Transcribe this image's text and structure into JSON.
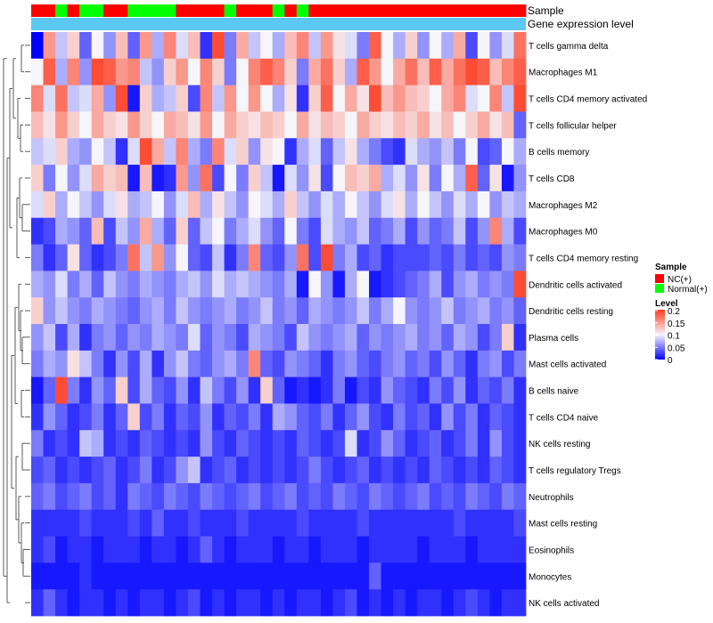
{
  "chart_data": {
    "type": "heatmap",
    "title": "",
    "annotation_tracks": [
      {
        "name": "Sample",
        "label": "Sample"
      },
      {
        "name": "Gene expression level",
        "label": "Gene expression level"
      }
    ],
    "rows": [
      "T cells gamma delta",
      "Macrophages M1",
      "T cells CD4 memory activated",
      "T cells follicular helper",
      "B cells memory",
      "T cells CD8",
      "Macrophages M2",
      "Macrophages M0",
      "T cells CD4 memory resting",
      "Dendritic cells activated",
      "Dendritic cells resting",
      "Plasma cells",
      "Mast cells activated",
      "B cells naive",
      "T cells CD4 naive",
      "NK cells resting",
      "T cells regulatory  Tregs",
      "Neutrophils",
      "Mast cells resting",
      "Eosinophils",
      "Monocytes",
      "NK cells activated"
    ],
    "columns": 41,
    "sample_groups": [
      "NC",
      "NC",
      "Normal",
      "NC",
      "Normal",
      "Normal",
      "NC",
      "NC",
      "Normal",
      "Normal",
      "Normal",
      "Normal",
      "NC",
      "NC",
      "NC",
      "NC",
      "Normal",
      "NC",
      "NC",
      "NC",
      "Normal",
      "NC",
      "Normal",
      "NC",
      "NC",
      "NC",
      "NC",
      "NC",
      "NC",
      "NC",
      "NC",
      "NC",
      "NC",
      "NC",
      "NC",
      "NC",
      "NC",
      "NC",
      "NC",
      "NC",
      "NC"
    ],
    "legend": {
      "sample_title": "Sample",
      "sample_items": [
        {
          "label": "NC(+)",
          "color": "#ff0000"
        },
        {
          "label": "Normal(+)",
          "color": "#00ff00"
        }
      ],
      "level_title": "Level",
      "level_ticks": [
        "0.2",
        "0.15",
        "0.1",
        "0.05",
        "0"
      ],
      "level_tick_values": [
        0.2,
        0.15,
        0.1,
        0.05,
        0
      ],
      "range": [
        0,
        0.2
      ],
      "placement": "right"
    },
    "colors": {
      "low": "#0000ff",
      "mid": "#f5f5fa",
      "high": "#ff3a1e",
      "expression_track": "#5ac8f0",
      "dendrogram": "#333333"
    },
    "values": [
      [
        0.0,
        0.15,
        0.08,
        0.12,
        0.04,
        0.1,
        0.06,
        0.13,
        0.04,
        0.15,
        0.07,
        0.16,
        0.09,
        0.13,
        0.02,
        0.19,
        0.05,
        0.14,
        0.08,
        0.1,
        0.07,
        0.13,
        0.16,
        0.08,
        0.15,
        0.11,
        0.09,
        0.05,
        0.18,
        0.1,
        0.07,
        0.12,
        0.06,
        0.1,
        0.07,
        0.14,
        0.03,
        0.1,
        0.06,
        0.09,
        0.17
      ],
      [
        0.1,
        0.18,
        0.07,
        0.16,
        0.06,
        0.19,
        0.18,
        0.15,
        0.16,
        0.08,
        0.06,
        0.12,
        0.15,
        0.1,
        0.16,
        0.12,
        0.05,
        0.1,
        0.16,
        0.18,
        0.16,
        0.12,
        0.05,
        0.14,
        0.17,
        0.12,
        0.07,
        0.18,
        0.15,
        0.1,
        0.14,
        0.17,
        0.13,
        0.18,
        0.14,
        0.17,
        0.19,
        0.18,
        0.13,
        0.16,
        0.18
      ],
      [
        0.16,
        0.09,
        0.17,
        0.08,
        0.09,
        0.14,
        0.06,
        0.19,
        0.01,
        0.12,
        0.07,
        0.08,
        0.12,
        0.03,
        0.16,
        0.08,
        0.15,
        0.1,
        0.15,
        0.1,
        0.07,
        0.11,
        0.02,
        0.12,
        0.18,
        0.1,
        0.14,
        0.11,
        0.19,
        0.13,
        0.15,
        0.13,
        0.12,
        0.1,
        0.14,
        0.16,
        0.09,
        0.1,
        0.16,
        0.08,
        0.19
      ],
      [
        0.13,
        0.11,
        0.15,
        0.12,
        0.1,
        0.14,
        0.12,
        0.11,
        0.15,
        0.12,
        0.1,
        0.14,
        0.13,
        0.11,
        0.15,
        0.1,
        0.14,
        0.12,
        0.11,
        0.13,
        0.12,
        0.1,
        0.14,
        0.11,
        0.13,
        0.12,
        0.1,
        0.14,
        0.12,
        0.11,
        0.13,
        0.12,
        0.14,
        0.11,
        0.13,
        0.1,
        0.12,
        0.14,
        0.11,
        0.13,
        0.04
      ],
      [
        0.08,
        0.09,
        0.12,
        0.07,
        0.06,
        0.1,
        0.08,
        0.02,
        0.09,
        0.19,
        0.14,
        0.08,
        0.16,
        0.07,
        0.05,
        0.16,
        0.09,
        0.12,
        0.06,
        0.11,
        0.1,
        0.02,
        0.07,
        0.09,
        0.04,
        0.08,
        0.11,
        0.07,
        0.05,
        0.03,
        0.02,
        0.09,
        0.07,
        0.06,
        0.08,
        0.05,
        0.1,
        0.03,
        0.04,
        0.1,
        0.07
      ],
      [
        0.12,
        0.05,
        0.1,
        0.06,
        0.09,
        0.14,
        0.12,
        0.13,
        0.01,
        0.13,
        0.01,
        0.02,
        0.15,
        0.06,
        0.17,
        0.03,
        0.1,
        0.05,
        0.12,
        0.08,
        0.01,
        0.09,
        0.06,
        0.11,
        0.03,
        0.1,
        0.13,
        0.12,
        0.14,
        0.07,
        0.09,
        0.06,
        0.11,
        0.05,
        0.1,
        0.07,
        0.18,
        0.04,
        0.11,
        0.01,
        0.06
      ],
      [
        0.09,
        0.12,
        0.07,
        0.1,
        0.08,
        0.06,
        0.09,
        0.11,
        0.07,
        0.08,
        0.1,
        0.06,
        0.09,
        0.13,
        0.07,
        0.11,
        0.08,
        0.06,
        0.1,
        0.09,
        0.07,
        0.12,
        0.08,
        0.06,
        0.09,
        0.07,
        0.1,
        0.08,
        0.06,
        0.09,
        0.11,
        0.07,
        0.1,
        0.08,
        0.06,
        0.09,
        0.07,
        0.1,
        0.06,
        0.08,
        0.07
      ],
      [
        0.02,
        0.03,
        0.07,
        0.06,
        0.04,
        0.13,
        0.03,
        0.08,
        0.06,
        0.14,
        0.07,
        0.04,
        0.12,
        0.04,
        0.08,
        0.1,
        0.05,
        0.07,
        0.09,
        0.06,
        0.04,
        0.1,
        0.05,
        0.03,
        0.09,
        0.07,
        0.06,
        0.08,
        0.04,
        0.05,
        0.07,
        0.03,
        0.06,
        0.04,
        0.05,
        0.08,
        0.03,
        0.06,
        0.16,
        0.07,
        0.03
      ],
      [
        0.05,
        0.02,
        0.04,
        0.11,
        0.04,
        0.02,
        0.03,
        0.05,
        0.17,
        0.08,
        0.15,
        0.06,
        0.1,
        0.04,
        0.03,
        0.08,
        0.02,
        0.05,
        0.16,
        0.04,
        0.03,
        0.06,
        0.17,
        0.03,
        0.19,
        0.05,
        0.07,
        0.03,
        0.04,
        0.02,
        0.03,
        0.03,
        0.03,
        0.04,
        0.03,
        0.05,
        0.03,
        0.04,
        0.03,
        0.06,
        0.05
      ],
      [
        0.07,
        0.06,
        0.09,
        0.05,
        0.07,
        0.04,
        0.08,
        0.06,
        0.05,
        0.07,
        0.06,
        0.05,
        0.07,
        0.08,
        0.06,
        0.09,
        0.07,
        0.08,
        0.07,
        0.06,
        0.05,
        0.07,
        0.01,
        0.1,
        0.06,
        0.01,
        0.07,
        0.1,
        0.01,
        0.02,
        0.03,
        0.04,
        0.05,
        0.07,
        0.03,
        0.06,
        0.07,
        0.05,
        0.06,
        0.05,
        0.19
      ],
      [
        0.12,
        0.06,
        0.08,
        0.06,
        0.05,
        0.07,
        0.06,
        0.05,
        0.04,
        0.06,
        0.07,
        0.05,
        0.08,
        0.06,
        0.05,
        0.06,
        0.07,
        0.05,
        0.06,
        0.08,
        0.05,
        0.06,
        0.04,
        0.07,
        0.06,
        0.05,
        0.06,
        0.08,
        0.05,
        0.07,
        0.1,
        0.06,
        0.05,
        0.06,
        0.08,
        0.05,
        0.06,
        0.07,
        0.05,
        0.06,
        0.04
      ],
      [
        0.06,
        0.08,
        0.03,
        0.07,
        0.02,
        0.05,
        0.06,
        0.04,
        0.06,
        0.05,
        0.07,
        0.06,
        0.05,
        0.09,
        0.04,
        0.06,
        0.05,
        0.03,
        0.07,
        0.06,
        0.05,
        0.03,
        0.08,
        0.06,
        0.05,
        0.06,
        0.07,
        0.04,
        0.06,
        0.05,
        0.06,
        0.07,
        0.05,
        0.06,
        0.04,
        0.07,
        0.06,
        0.03,
        0.05,
        0.12,
        0.02
      ],
      [
        0.05,
        0.07,
        0.06,
        0.11,
        0.08,
        0.05,
        0.02,
        0.06,
        0.03,
        0.07,
        0.02,
        0.06,
        0.08,
        0.05,
        0.04,
        0.06,
        0.07,
        0.05,
        0.16,
        0.04,
        0.03,
        0.06,
        0.05,
        0.04,
        0.02,
        0.05,
        0.06,
        0.04,
        0.03,
        0.05,
        0.06,
        0.04,
        0.05,
        0.03,
        0.06,
        0.04,
        0.02,
        0.05,
        0.06,
        0.03,
        0.05
      ],
      [
        0.01,
        0.04,
        0.19,
        0.05,
        0.02,
        0.06,
        0.04,
        0.12,
        0.03,
        0.07,
        0.04,
        0.03,
        0.06,
        0.02,
        0.08,
        0.05,
        0.03,
        0.06,
        0.02,
        0.12,
        0.04,
        0.01,
        0.02,
        0.01,
        0.02,
        0.05,
        0.01,
        0.03,
        0.02,
        0.06,
        0.04,
        0.03,
        0.02,
        0.05,
        0.03,
        0.06,
        0.02,
        0.04,
        0.03,
        0.05,
        0.02
      ],
      [
        0.02,
        0.06,
        0.04,
        0.02,
        0.03,
        0.05,
        0.02,
        0.04,
        0.12,
        0.03,
        0.05,
        0.02,
        0.04,
        0.03,
        0.06,
        0.02,
        0.04,
        0.03,
        0.05,
        0.02,
        0.07,
        0.06,
        0.04,
        0.03,
        0.05,
        0.02,
        0.04,
        0.06,
        0.03,
        0.02,
        0.05,
        0.03,
        0.04,
        0.02,
        0.06,
        0.03,
        0.05,
        0.02,
        0.04,
        0.03,
        0.02
      ],
      [
        0.05,
        0.02,
        0.03,
        0.02,
        0.08,
        0.07,
        0.02,
        0.03,
        0.02,
        0.04,
        0.03,
        0.02,
        0.03,
        0.02,
        0.06,
        0.03,
        0.02,
        0.04,
        0.03,
        0.02,
        0.03,
        0.02,
        0.04,
        0.03,
        0.02,
        0.03,
        0.09,
        0.02,
        0.03,
        0.06,
        0.04,
        0.02,
        0.03,
        0.04,
        0.02,
        0.03,
        0.05,
        0.02,
        0.06,
        0.03,
        0.02
      ],
      [
        0.03,
        0.04,
        0.02,
        0.03,
        0.02,
        0.03,
        0.04,
        0.02,
        0.03,
        0.05,
        0.02,
        0.03,
        0.06,
        0.08,
        0.02,
        0.03,
        0.04,
        0.02,
        0.03,
        0.02,
        0.03,
        0.02,
        0.03,
        0.05,
        0.03,
        0.02,
        0.03,
        0.04,
        0.02,
        0.03,
        0.02,
        0.03,
        0.02,
        0.04,
        0.03,
        0.02,
        0.03,
        0.02,
        0.04,
        0.03,
        0.02
      ],
      [
        0.04,
        0.05,
        0.03,
        0.04,
        0.05,
        0.03,
        0.04,
        0.02,
        0.05,
        0.04,
        0.03,
        0.05,
        0.04,
        0.03,
        0.05,
        0.04,
        0.03,
        0.04,
        0.05,
        0.03,
        0.04,
        0.05,
        0.03,
        0.04,
        0.03,
        0.05,
        0.04,
        0.03,
        0.05,
        0.04,
        0.03,
        0.04,
        0.05,
        0.03,
        0.04,
        0.03,
        0.05,
        0.04,
        0.03,
        0.05,
        0.04
      ],
      [
        0.02,
        0.02,
        0.02,
        0.02,
        0.03,
        0.02,
        0.02,
        0.02,
        0.03,
        0.02,
        0.04,
        0.02,
        0.02,
        0.03,
        0.02,
        0.02,
        0.02,
        0.03,
        0.02,
        0.02,
        0.02,
        0.02,
        0.03,
        0.02,
        0.02,
        0.02,
        0.02,
        0.03,
        0.02,
        0.02,
        0.02,
        0.02,
        0.02,
        0.02,
        0.02,
        0.03,
        0.02,
        0.02,
        0.02,
        0.02,
        0.03
      ],
      [
        0.02,
        0.03,
        0.01,
        0.02,
        0.02,
        0.01,
        0.02,
        0.02,
        0.02,
        0.01,
        0.02,
        0.02,
        0.01,
        0.02,
        0.04,
        0.02,
        0.01,
        0.02,
        0.02,
        0.02,
        0.01,
        0.02,
        0.02,
        0.01,
        0.02,
        0.02,
        0.02,
        0.01,
        0.02,
        0.02,
        0.02,
        0.02,
        0.01,
        0.02,
        0.02,
        0.02,
        0.01,
        0.02,
        0.02,
        0.02,
        0.02
      ],
      [
        0.01,
        0.01,
        0.01,
        0.01,
        0.02,
        0.01,
        0.01,
        0.01,
        0.01,
        0.01,
        0.01,
        0.01,
        0.01,
        0.01,
        0.01,
        0.01,
        0.01,
        0.01,
        0.01,
        0.01,
        0.01,
        0.01,
        0.01,
        0.01,
        0.01,
        0.01,
        0.01,
        0.01,
        0.04,
        0.01,
        0.01,
        0.01,
        0.01,
        0.01,
        0.01,
        0.01,
        0.01,
        0.01,
        0.01,
        0.01,
        0.01
      ],
      [
        0.02,
        0.04,
        0.02,
        0.01,
        0.02,
        0.02,
        0.01,
        0.02,
        0.01,
        0.02,
        0.02,
        0.01,
        0.02,
        0.03,
        0.01,
        0.02,
        0.01,
        0.02,
        0.02,
        0.01,
        0.02,
        0.01,
        0.02,
        0.02,
        0.01,
        0.02,
        0.03,
        0.01,
        0.02,
        0.01,
        0.02,
        0.01,
        0.02,
        0.02,
        0.01,
        0.02,
        0.03,
        0.02,
        0.01,
        0.02,
        0.02
      ]
    ]
  }
}
